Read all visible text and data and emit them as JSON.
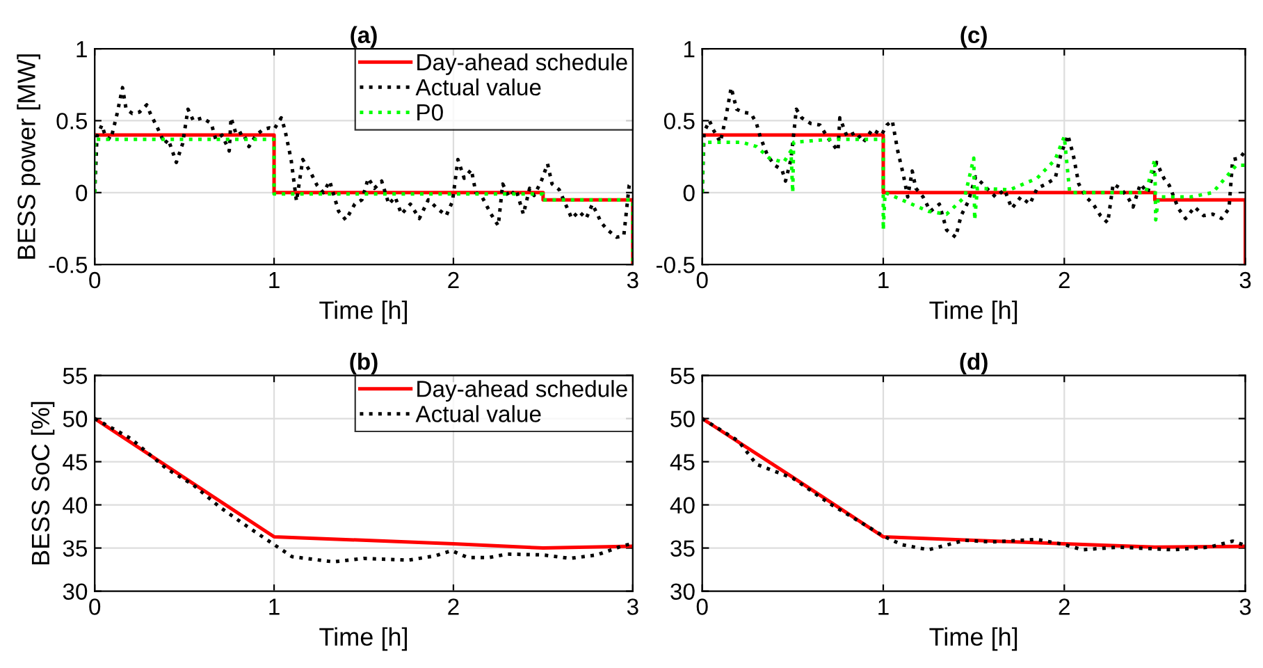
{
  "chart_data": [
    {
      "type": "line",
      "title": "(a)",
      "xlabel": "Time [h]",
      "ylabel": "BESS power [MW]",
      "xlim": [
        0,
        3
      ],
      "ylim": [
        -0.5,
        1
      ],
      "xticks": [
        0,
        1,
        2,
        3
      ],
      "yticks": [
        -0.5,
        0,
        0.5,
        1
      ],
      "grid": true,
      "legend": "top right",
      "series": [
        {
          "name": "Day-ahead schedule",
          "color": "#ff0000",
          "line_style": "solid",
          "x": [
            0,
            1,
            1,
            2.5,
            2.5,
            3,
            3
          ],
          "values": [
            0.4,
            0.4,
            0,
            0,
            -0.05,
            -0.05,
            -0.5
          ]
        },
        {
          "name": "Actual value",
          "color": "#000000",
          "line_style": "dotted",
          "x": [
            0,
            0.0125,
            0.04,
            0.06,
            0.09,
            0.125,
            0.155,
            0.175,
            0.21,
            0.25,
            0.29,
            0.31,
            0.35,
            0.39,
            0.41,
            0.455,
            0.49,
            0.52,
            0.55,
            0.6,
            0.65,
            0.675,
            0.71,
            0.75,
            0.76,
            0.79,
            0.825,
            0.86,
            0.9,
            0.94,
            0.975,
            1.0,
            1.04,
            1.06,
            1.095,
            1.125,
            1.16,
            1.2,
            1.24,
            1.275,
            1.31,
            1.36,
            1.4,
            1.45,
            1.49,
            1.525,
            1.56,
            1.6,
            1.64,
            1.675,
            1.71,
            1.76,
            1.81,
            1.86,
            1.91,
            1.96,
            1.995,
            2.025,
            2.06,
            2.1,
            2.125,
            2.16,
            2.21,
            2.25,
            2.275,
            2.31,
            2.35,
            2.39,
            2.425,
            2.45,
            2.49,
            2.525,
            2.55,
            2.59,
            2.625,
            2.66,
            2.7,
            2.74,
            2.775,
            2.825,
            2.86,
            2.91,
            2.95,
            2.98,
            3.0
          ],
          "values": [
            0,
            0.39,
            0.47,
            0.39,
            0.37,
            0.55,
            0.73,
            0.58,
            0.55,
            0.56,
            0.61,
            0.55,
            0.45,
            0.34,
            0.37,
            0.21,
            0.34,
            0.58,
            0.5,
            0.52,
            0.48,
            0.37,
            0.4,
            0.29,
            0.52,
            0.4,
            0.42,
            0.32,
            0.4,
            0.44,
            0.45,
            0.44,
            0.52,
            0.44,
            0.23,
            -0.06,
            0.23,
            0.15,
            0.05,
            0,
            0.08,
            -0.13,
            -0.19,
            -0.08,
            -0.05,
            0.1,
            0.03,
            0.08,
            -0.08,
            -0.03,
            -0.15,
            -0.08,
            -0.18,
            -0.05,
            -0.11,
            -0.16,
            -0.06,
            0.23,
            0.1,
            0.16,
            0,
            -0.03,
            -0.15,
            -0.23,
            0.06,
            -0.03,
            0.02,
            -0.15,
            0.03,
            -0.02,
            0.08,
            0.2,
            0.06,
            0.02,
            -0.08,
            -0.18,
            -0.13,
            -0.18,
            -0.08,
            -0.21,
            -0.26,
            -0.31,
            -0.3,
            0.05,
            0.08
          ]
        },
        {
          "name": "P0",
          "color": "#00ff00",
          "line_style": "dotted",
          "x": [
            0,
            0,
            1,
            1,
            2.5,
            2.5,
            3,
            3
          ],
          "values": [
            0,
            0.37,
            0.37,
            -0.01,
            -0.01,
            -0.05,
            -0.05,
            -0.5
          ]
        }
      ]
    },
    {
      "type": "line",
      "title": "(b)",
      "xlabel": "Time [h]",
      "ylabel": "BESS SoC [%]",
      "xlim": [
        0,
        3
      ],
      "ylim": [
        30,
        55
      ],
      "xticks": [
        0,
        1,
        2,
        3
      ],
      "yticks": [
        30,
        35,
        40,
        45,
        50,
        55
      ],
      "grid": true,
      "legend": "top right",
      "series": [
        {
          "name": "Day-ahead schedule",
          "color": "#ff0000",
          "line_style": "solid",
          "x": [
            0,
            1,
            2,
            2.5,
            3
          ],
          "values": [
            50,
            36.3,
            35.5,
            35.0,
            35.2
          ]
        },
        {
          "name": "Actual value",
          "color": "#000000",
          "line_style": "dotted",
          "x": [
            0,
            0.2,
            0.4,
            0.55,
            0.7,
            0.85,
            1.0,
            1.1,
            1.33,
            1.5,
            1.75,
            1.9,
            1.99,
            2.08,
            2.2,
            2.3,
            2.5,
            2.65,
            2.8,
            2.95,
            3.0
          ],
          "values": [
            50,
            47.7,
            44.2,
            42.3,
            39.7,
            37.5,
            35.4,
            34.0,
            33.4,
            33.8,
            33.6,
            34.1,
            34.7,
            33.9,
            33.9,
            34.3,
            34.2,
            33.8,
            34.2,
            35.3,
            35.5
          ]
        }
      ]
    },
    {
      "type": "line",
      "title": "(c)",
      "xlabel": "Time [h]",
      "xlim": [
        0,
        3
      ],
      "ylim": [
        -0.5,
        1
      ],
      "xticks": [
        0,
        1,
        2,
        3
      ],
      "yticks": [
        -0.5,
        0,
        0.5,
        1
      ],
      "grid": true,
      "series": [
        {
          "color": "#ff0000",
          "line_style": "solid",
          "x": [
            0,
            1,
            1,
            2.5,
            2.5,
            3,
            3
          ],
          "values": [
            0.4,
            0.4,
            0,
            0,
            -0.05,
            -0.05,
            -0.5
          ]
        },
        {
          "color": "#000000",
          "line_style": "dotted",
          "x": [
            0,
            0.01,
            0.04,
            0.06,
            0.1,
            0.13,
            0.16,
            0.19,
            0.22,
            0.27,
            0.3,
            0.32,
            0.36,
            0.4,
            0.44,
            0.46,
            0.49,
            0.52,
            0.55,
            0.6,
            0.65,
            0.7,
            0.75,
            0.76,
            0.8,
            0.85,
            0.89,
            0.94,
            0.99,
            1.02,
            1.05,
            1.08,
            1.11,
            1.135,
            1.16,
            1.18,
            1.22,
            1.26,
            1.31,
            1.35,
            1.4,
            1.43,
            1.47,
            1.51,
            1.55,
            1.58,
            1.62,
            1.67,
            1.71,
            1.76,
            1.81,
            1.85,
            1.9,
            1.95,
            1.98,
            2.02,
            2.05,
            2.08,
            2.12,
            2.16,
            2.2,
            2.24,
            2.27,
            2.31,
            2.35,
            2.38,
            2.42,
            2.46,
            2.51,
            2.55,
            2.58,
            2.63,
            2.67,
            2.72,
            2.77,
            2.82,
            2.87,
            2.91,
            2.93,
            2.97,
            3.0
          ],
          "values": [
            0,
            0.42,
            0.5,
            0.44,
            0.35,
            0.52,
            0.73,
            0.58,
            0.56,
            0.55,
            0.48,
            0.39,
            0.26,
            0.19,
            0.16,
            0.08,
            0.23,
            0.58,
            0.52,
            0.48,
            0.47,
            0.37,
            0.29,
            0.52,
            0.39,
            0.42,
            0.35,
            0.44,
            0.4,
            0.47,
            0.5,
            0.29,
            0.13,
            -0.03,
            0.15,
            0.03,
            -0.03,
            -0.13,
            -0.08,
            -0.26,
            -0.31,
            -0.16,
            -0.06,
            0.11,
            0.06,
            0.02,
            -0.03,
            0.02,
            -0.11,
            -0.03,
            -0.08,
            0.03,
            0.06,
            0.1,
            0.26,
            0.4,
            0.26,
            0.06,
            -0.03,
            -0.08,
            -0.16,
            -0.21,
            0.06,
            0.03,
            -0.03,
            -0.1,
            0.06,
            0,
            0.21,
            0.1,
            0.05,
            -0.11,
            -0.18,
            -0.1,
            -0.16,
            -0.15,
            -0.18,
            -0.11,
            0.23,
            0.24,
            0.29
          ]
        },
        {
          "color": "#00ff00",
          "line_style": "dotted",
          "x": [
            0,
            0.005,
            0.1,
            0.22,
            0.3,
            0.37,
            0.45,
            0.49,
            0.5,
            0.505,
            0.7,
            1.0,
            1.0,
            1.01,
            1.12,
            1.25,
            1.35,
            1.45,
            1.5,
            1.505,
            1.52,
            1.7,
            1.85,
            1.95,
            2.0,
            2.03,
            2.2,
            2.45,
            2.5,
            2.505,
            2.52,
            2.7,
            2.82,
            2.95,
            3.0
          ],
          "values": [
            0,
            0.35,
            0.35,
            0.35,
            0.32,
            0.24,
            0.21,
            0.29,
            0,
            0.35,
            0.37,
            0.37,
            -0.26,
            0,
            -0.06,
            -0.13,
            -0.15,
            -0.03,
            0.24,
            -0.19,
            0.03,
            0.02,
            0.1,
            0.23,
            0.39,
            0,
            0,
            0,
            0.23,
            -0.19,
            -0.03,
            -0.03,
            0,
            0.19,
            0.19
          ]
        }
      ]
    },
    {
      "type": "line",
      "title": "(d)",
      "xlabel": "Time [h]",
      "xlim": [
        0,
        3
      ],
      "ylim": [
        30,
        55
      ],
      "xticks": [
        0,
        1,
        2,
        3
      ],
      "yticks": [
        30,
        35,
        40,
        45,
        50,
        55
      ],
      "grid": true,
      "series": [
        {
          "color": "#ff0000",
          "line_style": "solid",
          "x": [
            0,
            0.5,
            1,
            1.5,
            2,
            2.5,
            3
          ],
          "values": [
            50,
            43.2,
            36.3,
            35.9,
            35.5,
            35.1,
            35.2
          ]
        },
        {
          "color": "#000000",
          "line_style": "dotted",
          "x": [
            0,
            0.2,
            0.3,
            0.5,
            0.7,
            1.0,
            1.1,
            1.25,
            1.45,
            1.6,
            1.85,
            2.0,
            2.1,
            2.3,
            2.6,
            2.8,
            2.93,
            3.0
          ],
          "values": [
            50,
            47.4,
            44.7,
            43.1,
            40.2,
            36.4,
            35.4,
            34.8,
            35.9,
            35.7,
            36.0,
            35.4,
            34.8,
            35.1,
            34.8,
            35.1,
            35.8,
            35.3
          ]
        }
      ]
    }
  ]
}
